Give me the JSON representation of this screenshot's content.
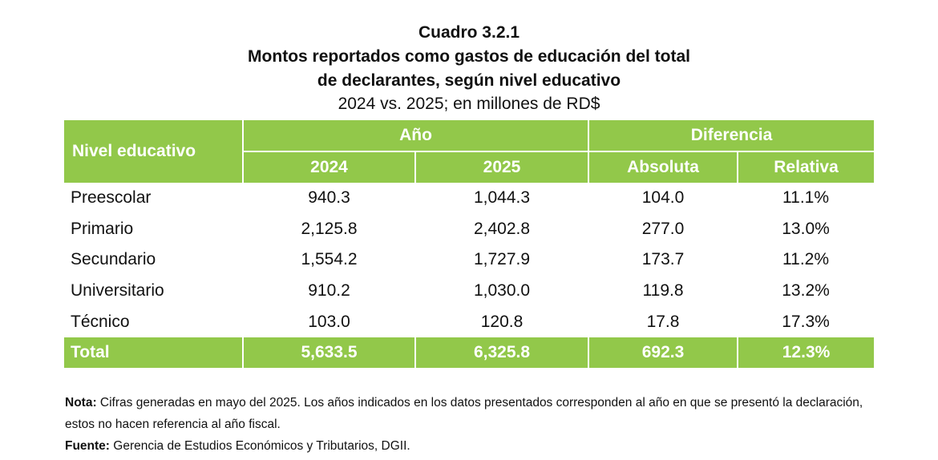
{
  "title": {
    "line1": "Cuadro 3.2.1",
    "line2": "Montos reportados como gastos de educación del total",
    "line3": "de declarantes, según nivel educativo",
    "line4": "2024 vs. 2025; en millones de RD$"
  },
  "table": {
    "header": {
      "level": "Nivel educativo",
      "year_group": "Año",
      "diff_group": "Diferencia",
      "y2024": "2024",
      "y2025": "2025",
      "absolute": "Absoluta",
      "relative": "Relativa"
    },
    "rows": [
      {
        "name": "Preescolar",
        "v2024": "940.3",
        "v2025": "1,044.3",
        "abs": "104.0",
        "rel": "11.1%"
      },
      {
        "name": "Primario",
        "v2024": "2,125.8",
        "v2025": "2,402.8",
        "abs": "277.0",
        "rel": "13.0%"
      },
      {
        "name": "Secundario",
        "v2024": "1,554.2",
        "v2025": "1,727.9",
        "abs": "173.7",
        "rel": "11.2%"
      },
      {
        "name": "Universitario",
        "v2024": "910.2",
        "v2025": "1,030.0",
        "abs": "119.8",
        "rel": "13.2%"
      },
      {
        "name": "Técnico",
        "v2024": "103.0",
        "v2025": "120.8",
        "abs": "17.8",
        "rel": "17.3%"
      }
    ],
    "total": {
      "name": "Total",
      "v2024": "5,633.5",
      "v2025": "6,325.8",
      "abs": "692.3",
      "rel": "12.3%"
    }
  },
  "notes": {
    "note_label": "Nota:",
    "note_text": " Cifras generadas en mayo del 2025. Los años indicados en los datos presentados corresponden al año en que se presentó la declaración, estos no hacen referencia al año fiscal.",
    "source_label": "Fuente:",
    "source_text": " Gerencia de Estudios Económicos y Tributarios, DGII."
  },
  "colors": {
    "header_green": "#92c84a",
    "header_text": "#ffffff"
  }
}
